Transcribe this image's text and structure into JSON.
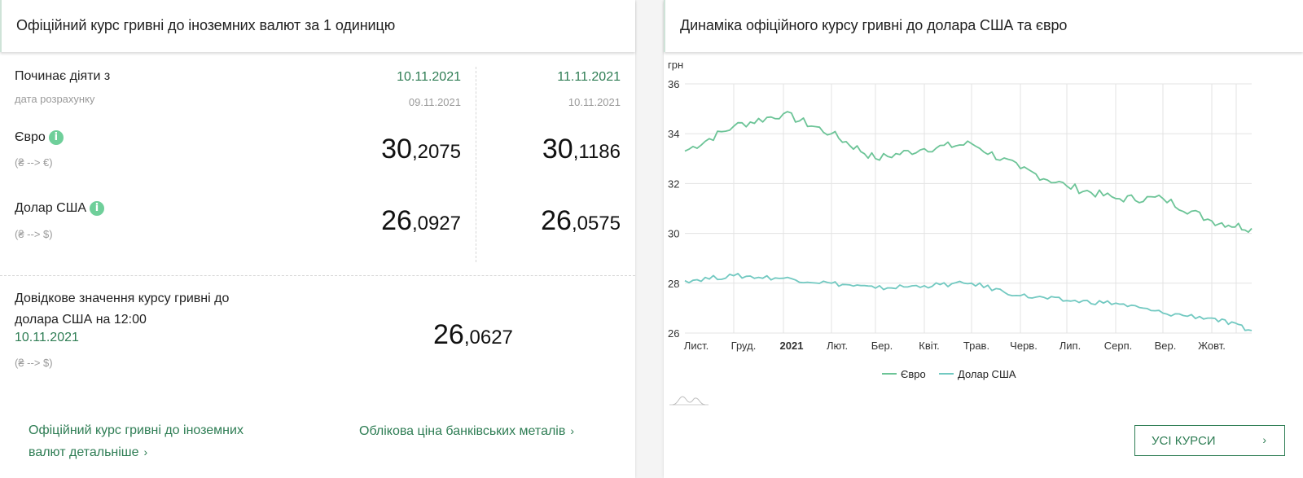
{
  "left_panel": {
    "title": "Офіційний курс гривні до іноземних валют за 1 одиницю",
    "effective_label": "Починає діяти з",
    "calc_date_label": "дата розрахунку",
    "columns": [
      {
        "effective_date": "10.11.2021",
        "calc_date": "09.11.2021"
      },
      {
        "effective_date": "11.11.2021",
        "calc_date": "10.11.2021"
      }
    ],
    "currencies": [
      {
        "name": "Євро",
        "direction": "(₴ --> €)",
        "info_icon": "info-icon",
        "rates": [
          {
            "int": "30",
            "frac": ",2075"
          },
          {
            "int": "30",
            "frac": ",1186"
          }
        ]
      },
      {
        "name": "Долар США",
        "direction": "(₴ --> $)",
        "info_icon": "info-icon",
        "rates": [
          {
            "int": "26",
            "frac": ",0927"
          },
          {
            "int": "26",
            "frac": ",0575"
          }
        ]
      }
    ],
    "reference": {
      "line1": "Довідкове значення курсу гривні до",
      "line2": "долара США на 12:00",
      "date": "10.11.2021",
      "direction": "(₴ --> $)",
      "rate_int": "26",
      "rate_frac": ",0627"
    },
    "links": [
      {
        "line1": "Офіційний курс гривні до іноземних",
        "line2": "валют детальніше",
        "chevron": "›"
      },
      {
        "line1": "Облікова ціна банківських металів",
        "chevron": "›"
      }
    ]
  },
  "right_panel": {
    "title": "Динаміка офіційного курсу гривні до долара США та євро",
    "button": {
      "label": "УСІ КУРСИ",
      "chevron": "›"
    },
    "navigator_icon": "mini-chart-navigator-icon"
  },
  "colors": {
    "accent_green": "#2e7d54",
    "info_icon": "#6fcf9a",
    "euro_line": "#6cc497",
    "usd_line": "#72c9c1",
    "grid": "#e3e3e3"
  },
  "chart_data": {
    "type": "line",
    "title": "Динаміка офіційного курсу гривні до долара США та євро",
    "ylabel": "грн",
    "xlabel": "",
    "ylim": [
      26,
      36
    ],
    "yticks": [
      26,
      28,
      30,
      32,
      34,
      36
    ],
    "grid": true,
    "legend_position": "bottom",
    "x": [
      "Лист.",
      "Груд.",
      "2021",
      "Лют.",
      "Бер.",
      "Квіт.",
      "Трав.",
      "Черв.",
      "Лип.",
      "Серп.",
      "Вер.",
      "Жовт."
    ],
    "series": [
      {
        "name": "Євро",
        "values": [
          33.3,
          34.3,
          34.8,
          34.0,
          33.0,
          33.4,
          33.6,
          32.6,
          31.9,
          31.4,
          31.4,
          30.5,
          30.2
        ]
      },
      {
        "name": "Долар США",
        "values": [
          28.1,
          28.3,
          28.2,
          28.0,
          27.8,
          27.9,
          28.0,
          27.5,
          27.3,
          27.2,
          26.8,
          26.6,
          26.1
        ]
      }
    ],
    "x_points_note": "values sampled at each month tick plus end point (Nov 2020 – Nov 2021)"
  }
}
